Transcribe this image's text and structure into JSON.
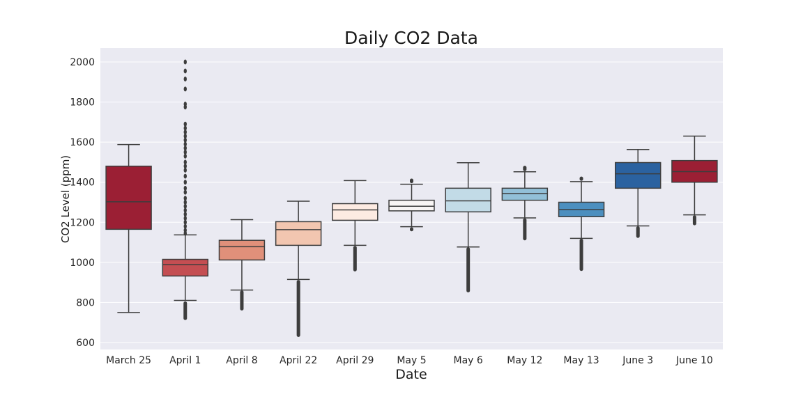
{
  "chart_data": {
    "type": "box",
    "title": "Daily CO2 Data",
    "xlabel": "Date",
    "ylabel": "CO2 Level (ppm)",
    "ylim": [
      575,
      2070
    ],
    "yticks": [
      600,
      800,
      1000,
      1200,
      1400,
      1600,
      1800,
      2000
    ],
    "grid": true,
    "categories": [
      "March 25",
      "April 1",
      "April 8",
      "April 22",
      "April 29",
      "May 5",
      "May 6",
      "May 12",
      "May 13",
      "June 3",
      "June 10"
    ],
    "boxes": [
      {
        "category": "March 25",
        "whisker_low": 750,
        "q1": 1165,
        "median": 1302,
        "q3": 1480,
        "whisker_high": 1588,
        "color": "#9b1f34",
        "outliers": []
      },
      {
        "category": "April 1",
        "whisker_low": 810,
        "q1": 932,
        "median": 988,
        "q3": 1015,
        "whisker_high": 1137,
        "color": "#c44e52",
        "outliers": [
          2000,
          1955,
          1915,
          1865,
          1790,
          1775,
          1690,
          1670,
          1650,
          1630,
          1610,
          1590,
          1570,
          1550,
          1530,
          1500,
          1480,
          1460,
          1430,
          1400,
          1370,
          1350,
          1320,
          1300,
          1280,
          1260,
          1240,
          1220,
          1200,
          1180,
          1160,
          1145
        ],
        "outlier_band_low": [
          712,
          805
        ]
      },
      {
        "category": "April 8",
        "whisker_low": 862,
        "q1": 1012,
        "median": 1078,
        "q3": 1110,
        "whisker_high": 1213,
        "color": "#e0907a",
        "outliers": [],
        "outlier_band_low": [
          760,
          860
        ]
      },
      {
        "category": "April 22",
        "whisker_low": 915,
        "q1": 1085,
        "median": 1163,
        "q3": 1203,
        "whisker_high": 1305,
        "color": "#f2c6b0",
        "outliers": [],
        "outlier_band_low": [
          628,
          912
        ]
      },
      {
        "category": "April 29",
        "whisker_low": 1085,
        "q1": 1210,
        "median": 1262,
        "q3": 1293,
        "whisker_high": 1408,
        "color": "#fdebe2",
        "outliers": [],
        "outlier_band_low": [
          955,
          1082
        ]
      },
      {
        "category": "May 5",
        "whisker_low": 1178,
        "q1": 1257,
        "median": 1280,
        "q3": 1310,
        "whisker_high": 1390,
        "color": "#f8f5f4",
        "outliers": [],
        "outlier_band_low": [
          1155,
          1175
        ],
        "outlier_band_high": [
          1395,
          1418
        ]
      },
      {
        "category": "May 6",
        "whisker_low": 1077,
        "q1": 1252,
        "median": 1307,
        "q3": 1370,
        "whisker_high": 1497,
        "color": "#c2dbe7",
        "outliers": [],
        "outlier_band_low": [
          850,
          1075
        ]
      },
      {
        "category": "May 12",
        "whisker_low": 1222,
        "q1": 1310,
        "median": 1343,
        "q3": 1370,
        "whisker_high": 1452,
        "color": "#92c0d8",
        "outliers": [],
        "outlier_band_low": [
          1110,
          1220
        ],
        "outlier_band_high": [
          1455,
          1482
        ]
      },
      {
        "category": "May 13",
        "whisker_low": 1120,
        "q1": 1228,
        "median": 1263,
        "q3": 1300,
        "whisker_high": 1403,
        "color": "#4c8fbf",
        "outliers": [],
        "outlier_band_low": [
          957,
          1118
        ],
        "outlier_band_high": [
          1407,
          1428
        ]
      },
      {
        "category": "June 3",
        "whisker_low": 1182,
        "q1": 1370,
        "median": 1442,
        "q3": 1498,
        "whisker_high": 1563,
        "color": "#2b62a0",
        "outliers": [],
        "outlier_band_low": [
          1122,
          1180
        ]
      },
      {
        "category": "June 10",
        "whisker_low": 1237,
        "q1": 1400,
        "median": 1453,
        "q3": 1508,
        "whisker_high": 1630,
        "color": "#9b1f34",
        "outliers": [],
        "outlier_band_low": [
          1185,
          1235
        ]
      }
    ]
  },
  "colors": {
    "plot_background": "#eaeaf2",
    "grid": "#ffffff",
    "box_edge": "#3d3d3d"
  }
}
